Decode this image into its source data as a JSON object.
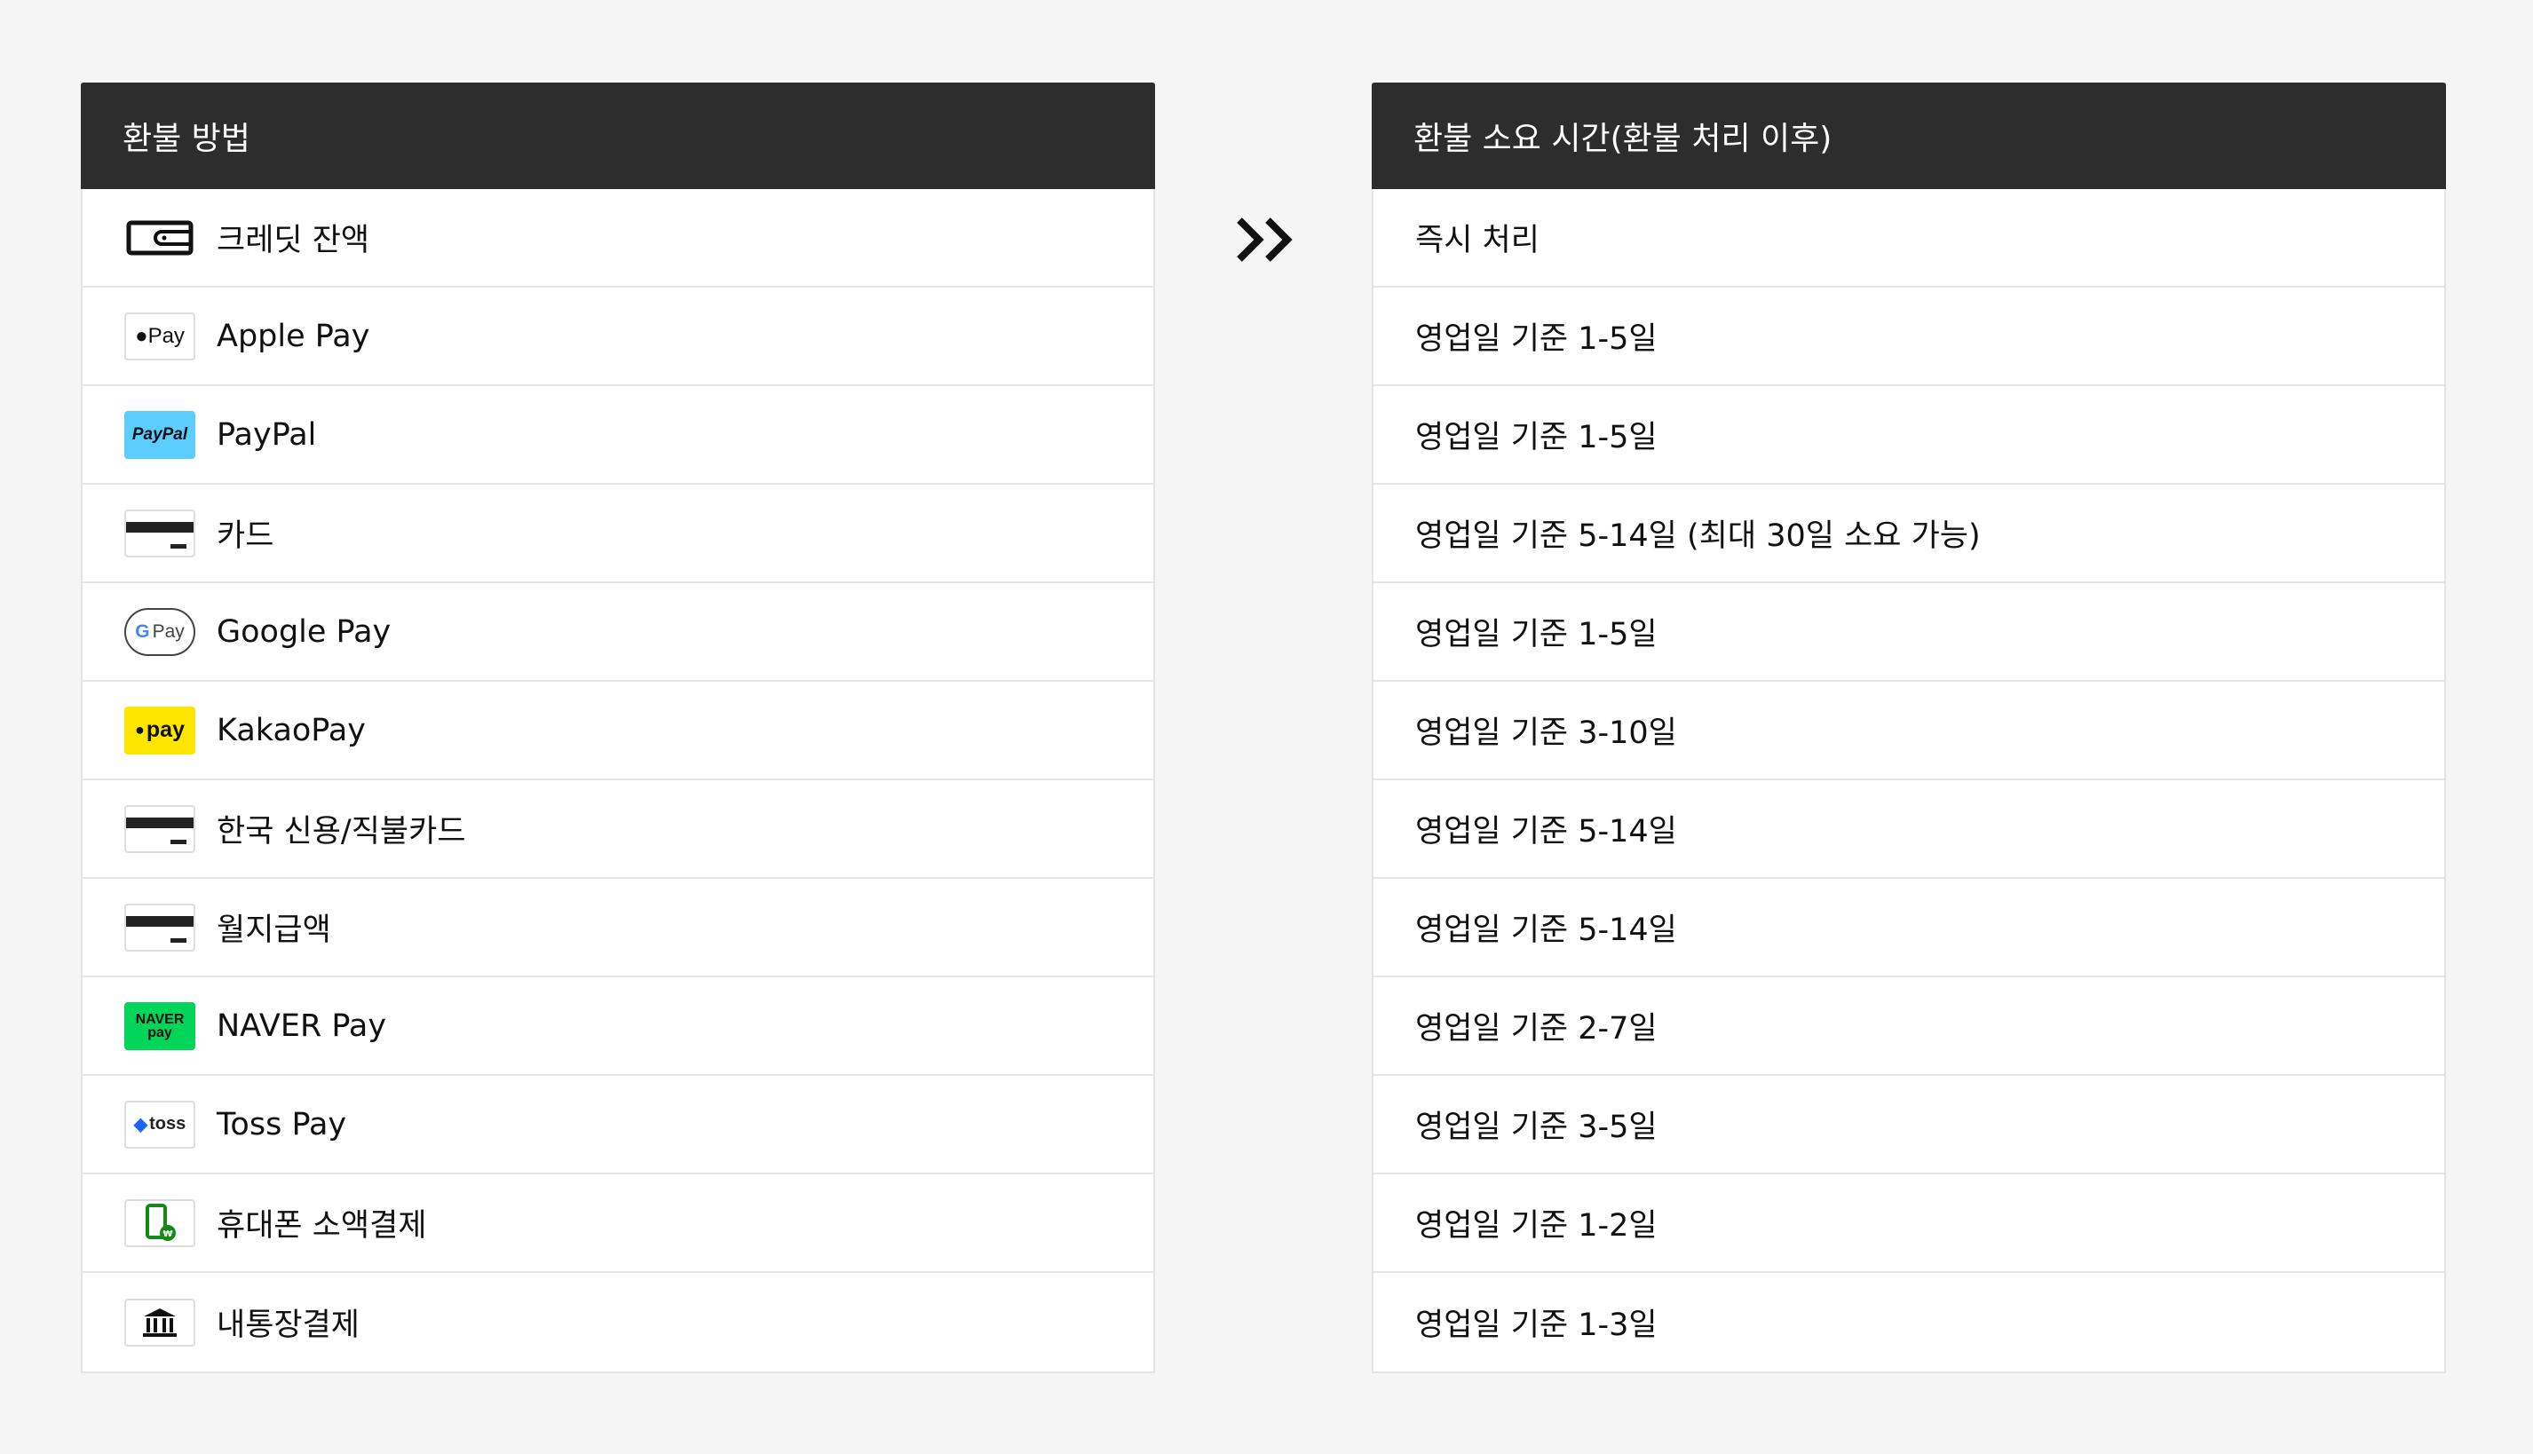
{
  "left_table": {
    "header": "환불 방법",
    "rows": [
      {
        "icon": "wallet-icon",
        "label": "크레딧 잔액"
      },
      {
        "icon": "apple-pay-icon",
        "label": "Apple Pay",
        "icon_text": "Pay"
      },
      {
        "icon": "paypal-icon",
        "label": "PayPal",
        "icon_text": "PayPal"
      },
      {
        "icon": "card-icon",
        "label": "카드"
      },
      {
        "icon": "google-pay-icon",
        "label": "Google Pay",
        "icon_text": "Pay"
      },
      {
        "icon": "kakaopay-icon",
        "label": "KakaoPay",
        "icon_text": "pay"
      },
      {
        "icon": "card-icon",
        "label": "한국 신용/직불카드"
      },
      {
        "icon": "card-icon",
        "label": "월지급액"
      },
      {
        "icon": "naver-pay-icon",
        "label": "NAVER Pay",
        "icon_text": "NAVER pay"
      },
      {
        "icon": "toss-pay-icon",
        "label": "Toss Pay",
        "icon_text": "toss"
      },
      {
        "icon": "mobile-payment-icon",
        "label": "휴대폰 소액결제"
      },
      {
        "icon": "bank-icon",
        "label": "내통장결제"
      }
    ]
  },
  "arrow_icon": "double-chevron-right-icon",
  "right_table": {
    "header": "환불 소요 시간(환불 처리 이후)",
    "rows": [
      "즉시 처리",
      "영업일 기준 1-5일",
      "영업일 기준 1-5일",
      "영업일 기준 5-14일 (최대 30일 소요 가능)",
      "영업일 기준 1-5일",
      "영업일 기준 3-10일",
      "영업일 기준 5-14일",
      "영업일 기준 5-14일",
      "영업일 기준 2-7일",
      "영업일 기준 3-5일",
      "영업일 기준 1-2일",
      "영업일 기준 1-3일"
    ]
  },
  "colors": {
    "header_bg": "#2d2d2d",
    "paypal": "#5ccdff",
    "kakao": "#ffe600",
    "naver": "#03d45a",
    "toss": "#1b64f5",
    "mobile": "#138a13"
  }
}
